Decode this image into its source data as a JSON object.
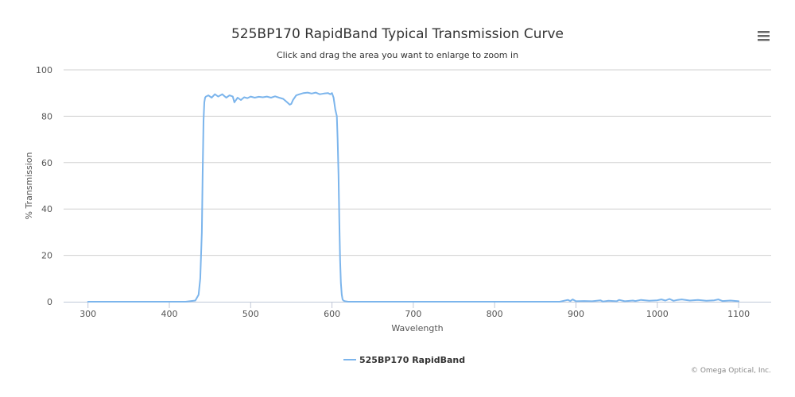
{
  "chart_data": {
    "type": "line",
    "title": "525BP170 RapidBand Typical Transmission Curve",
    "subtitle": "Click and drag the area you want to enlarge to zoom in",
    "xlabel": "Wavelength",
    "ylabel": "% Transmission",
    "xlim": [
      270,
      1140
    ],
    "ylim": [
      0,
      100
    ],
    "x_ticks": [
      300,
      400,
      500,
      600,
      700,
      800,
      900,
      1000,
      1100
    ],
    "y_ticks": [
      0,
      20,
      40,
      60,
      80,
      100
    ],
    "grid": true,
    "legend": "bottom-center",
    "series": [
      {
        "name": "525BP170 RapidBand",
        "color": "#7cb5ec",
        "x": [
          300,
          420,
          432,
          436,
          438,
          440,
          441,
          442,
          443,
          444,
          445,
          448,
          452,
          456,
          460,
          465,
          470,
          474,
          478,
          480,
          484,
          488,
          492,
          496,
          500,
          505,
          510,
          515,
          520,
          525,
          530,
          535,
          540,
          545,
          548,
          550,
          552,
          556,
          560,
          565,
          570,
          575,
          580,
          585,
          590,
          595,
          598,
          600,
          602,
          604,
          606,
          607,
          608,
          609,
          610,
          611,
          612,
          613,
          614,
          616,
          620,
          650,
          700,
          800,
          880,
          890,
          893,
          896,
          900,
          910,
          920,
          930,
          933,
          940,
          950,
          953,
          960,
          970,
          973,
          980,
          990,
          1000,
          1005,
          1010,
          1015,
          1020,
          1025,
          1030,
          1040,
          1050,
          1060,
          1070,
          1075,
          1080,
          1090,
          1100
        ],
        "y": [
          0,
          0,
          0.5,
          3,
          10,
          30,
          55,
          78,
          86,
          88,
          88.5,
          89,
          88,
          89.5,
          88.5,
          89.5,
          88,
          89,
          88.5,
          86,
          88,
          87,
          88.2,
          87.8,
          88.5,
          88,
          88.4,
          88.2,
          88.5,
          88,
          88.6,
          88,
          87.5,
          86,
          85,
          85.3,
          87,
          89,
          89.5,
          90,
          90.2,
          89.8,
          90.2,
          89.5,
          89.8,
          90,
          89.5,
          90,
          88,
          83,
          80,
          70,
          55,
          35,
          18,
          8,
          3,
          1,
          0.5,
          0.2,
          0,
          0,
          0,
          0,
          0,
          0.8,
          0.3,
          1,
          0.2,
          0.3,
          0.2,
          0.6,
          0.1,
          0.4,
          0.2,
          0.8,
          0.2,
          0.5,
          0.3,
          0.8,
          0.4,
          0.6,
          1,
          0.5,
          1.2,
          0.4,
          0.8,
          1,
          0.5,
          0.8,
          0.4,
          0.6,
          1,
          0.3,
          0.5,
          0.2
        ]
      }
    ]
  },
  "credits": "© Omega Optical, Inc.",
  "menu_icon": "hamburger-menu-icon"
}
